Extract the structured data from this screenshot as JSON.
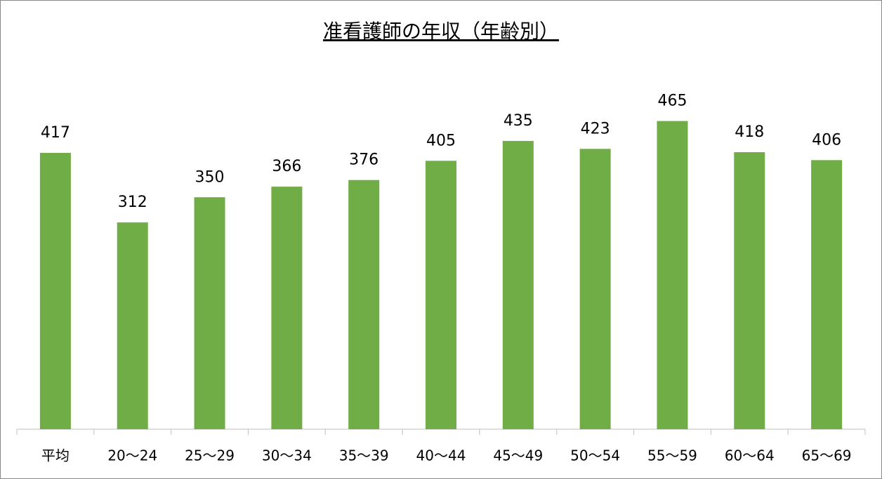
{
  "chart_data": {
    "type": "bar",
    "title": "准看護師の年収（年齢別）",
    "categories": [
      "平均",
      "20〜24",
      "25〜29",
      "30〜34",
      "35〜39",
      "40〜44",
      "45〜49",
      "50〜54",
      "55〜59",
      "60〜64",
      "65〜69"
    ],
    "values": [
      417,
      312,
      350,
      366,
      376,
      405,
      435,
      423,
      465,
      418,
      406
    ],
    "color": "#70ad47"
  }
}
